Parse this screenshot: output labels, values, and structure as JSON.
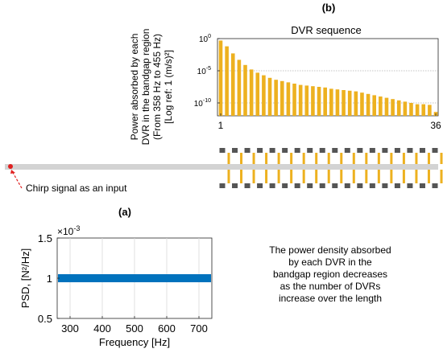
{
  "panel_b": {
    "label": "(b)",
    "title": "DVR sequence",
    "ylabel_lines": [
      "Power absorbed by each",
      "DVR in the bandgap region",
      "(From 358 Hz to 455 Hz)",
      "[Log ref: 1 (m/s)²]"
    ],
    "y_ticks": [
      {
        "base": "10",
        "exp": "0",
        "value": 0
      },
      {
        "base": "10",
        "exp": "-5",
        "value": -5
      },
      {
        "base": "10",
        "exp": "-10",
        "value": -10
      }
    ],
    "x_ticks": [
      "1",
      "36"
    ]
  },
  "panel_a": {
    "label": "(a)",
    "ylabel": "PSD, [N²/Hz]",
    "xlabel": "Frequency [Hz]",
    "multiplier_base": "×10",
    "multiplier_exp": "-3",
    "y_ticks": [
      "1.5",
      "1",
      "0.5"
    ],
    "x_ticks": [
      "300",
      "400",
      "500",
      "600",
      "700"
    ]
  },
  "input_label": "Chirp signal as an input",
  "description_lines": [
    "The power density absorbed",
    "by each DVR in the",
    "bandgap region decreases",
    "as the number of DVRs",
    "increase over the length"
  ],
  "colors": {
    "bar": "#EDB120",
    "psd": "#0072BD",
    "beam": "#D3D3D3",
    "dvr_mass": "#555555",
    "input_dot": "#E02020"
  },
  "chart_data": [
    {
      "type": "bar",
      "title": "DVR sequence",
      "xlabel": "",
      "ylabel": "Power absorbed by each DVR in the bandgap region (From 358 Hz to 455 Hz) [Log ref: 1 (m/s)²]",
      "yscale": "log",
      "ylim": [
        1e-12,
        1
      ],
      "xlim": [
        1,
        36
      ],
      "categories": [
        1,
        2,
        3,
        4,
        5,
        6,
        7,
        8,
        9,
        10,
        11,
        12,
        13,
        14,
        15,
        16,
        17,
        18,
        19,
        20,
        21,
        22,
        23,
        24,
        25,
        26,
        27,
        28,
        29,
        30,
        31,
        32,
        33,
        34,
        35,
        36
      ],
      "values_log10": [
        -0.3,
        -1.2,
        -2.3,
        -3.3,
        -4.1,
        -4.8,
        -5.3,
        -5.7,
        -6.1,
        -6.4,
        -6.6,
        -6.8,
        -7.0,
        -7.2,
        -7.3,
        -7.4,
        -7.5,
        -7.6,
        -7.8,
        -7.9,
        -8.0,
        -8.1,
        -8.2,
        -8.4,
        -8.6,
        -8.8,
        -9.0,
        -9.2,
        -9.4,
        -9.6,
        -9.8,
        -10.0,
        -10.2,
        -10.2,
        -10.3,
        -11.4
      ],
      "grid": "y"
    },
    {
      "type": "line",
      "xlabel": "Frequency [Hz]",
      "ylabel": "PSD, [N²/Hz]",
      "y_multiplier": 0.001,
      "xlim": [
        260,
        740
      ],
      "ylim": [
        0.5,
        1.5
      ],
      "series": [
        {
          "x": [
            260,
            740
          ],
          "values": [
            1.0,
            1.0
          ]
        }
      ],
      "grid": "x"
    }
  ]
}
